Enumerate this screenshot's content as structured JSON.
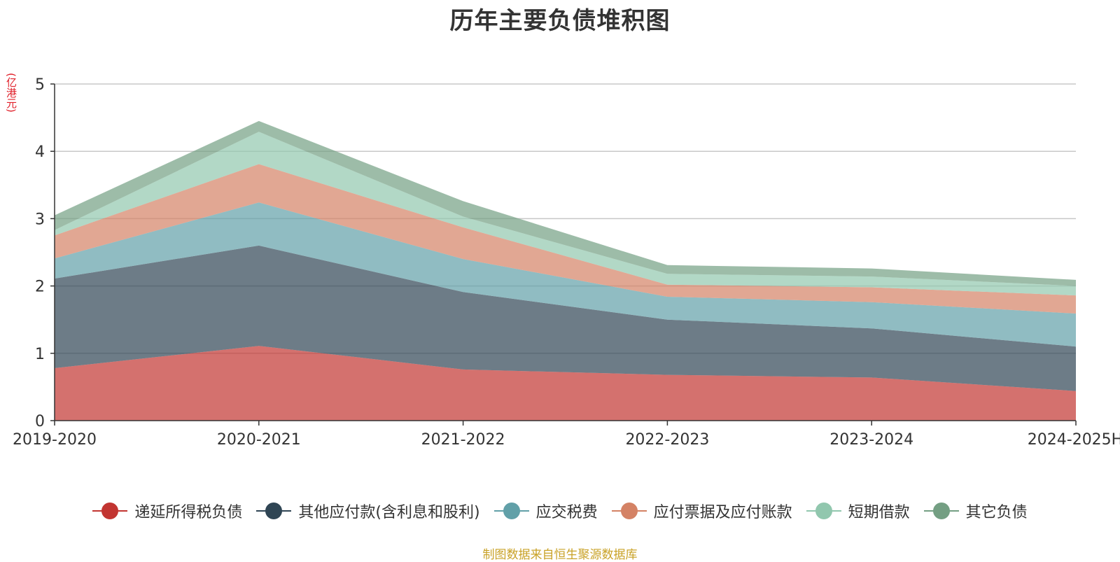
{
  "chart_data": {
    "type": "area",
    "stacked": true,
    "title": "历年主要负债堆积图",
    "y_unit_label": "(亿港元)",
    "categories": [
      "2019-2020",
      "2020-2021",
      "2021-2022",
      "2022-2023",
      "2023-2024",
      "2024-2025H"
    ],
    "ylim": [
      0,
      5
    ],
    "yticks": [
      "0",
      "1",
      "2",
      "3",
      "4",
      "5"
    ],
    "grid": true,
    "legend_position": "bottom",
    "series": [
      {
        "name": "递延所得税负债",
        "color": "#c23531",
        "values": [
          0.78,
          1.11,
          0.76,
          0.68,
          0.64,
          0.44
        ]
      },
      {
        "name": "其他应付款(含利息和股利)",
        "color": "#2f4554",
        "values": [
          1.33,
          1.49,
          1.15,
          0.82,
          0.73,
          0.66
        ]
      },
      {
        "name": "应交税费",
        "color": "#61a0a8",
        "values": [
          0.3,
          0.64,
          0.49,
          0.34,
          0.39,
          0.49
        ]
      },
      {
        "name": "应付票据及应付账款",
        "color": "#d48265",
        "values": [
          0.34,
          0.57,
          0.47,
          0.18,
          0.22,
          0.27
        ]
      },
      {
        "name": "短期借款",
        "color": "#91c7ae",
        "values": [
          0.08,
          0.48,
          0.16,
          0.16,
          0.16,
          0.14
        ]
      },
      {
        "name": "其它负债",
        "color": "#749f83",
        "values": [
          0.22,
          0.16,
          0.23,
          0.13,
          0.12,
          0.09
        ]
      }
    ]
  },
  "source_note": "制图数据来自恒生聚源数据库"
}
